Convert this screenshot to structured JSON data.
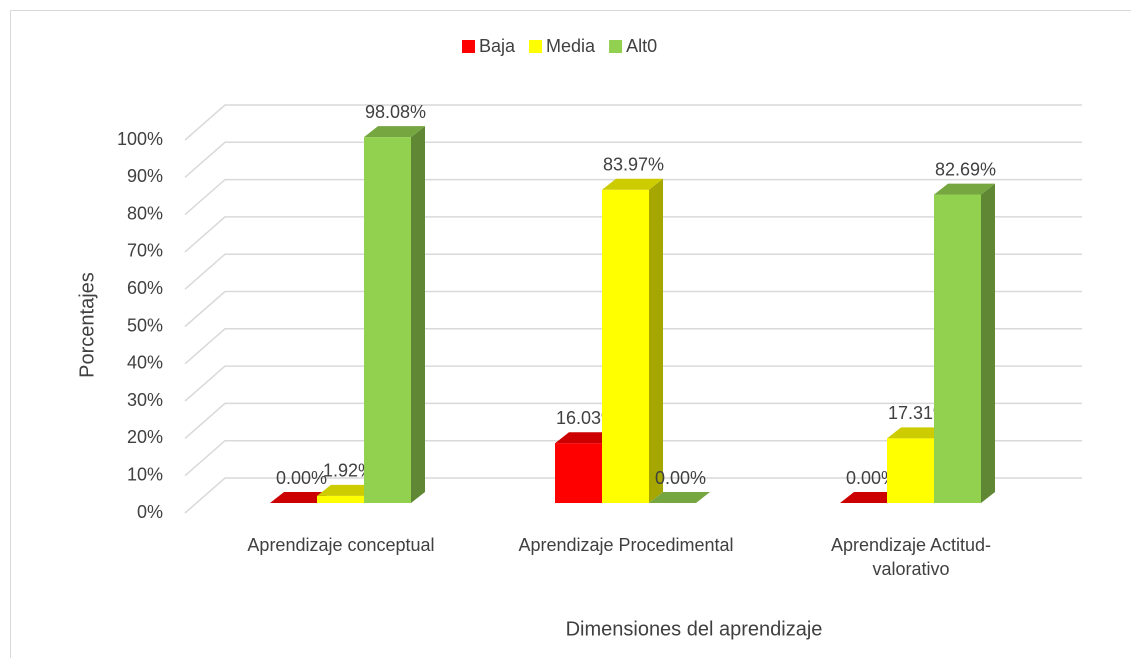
{
  "chart_data": {
    "type": "bar3d",
    "x_label": "Dimensiones del aprendizaje",
    "y_label": "Porcentajes",
    "categories": [
      "Aprendizaje conceptual",
      "Aprendizaje Procedimental",
      "Aprendizaje Actitud-valorativo"
    ],
    "series": [
      {
        "name": "Baja",
        "color": "#ff0000",
        "values": [
          0,
          16.03,
          0
        ],
        "value_labels": [
          "0.00%",
          "16.03%",
          "0.00%"
        ]
      },
      {
        "name": "Media",
        "color": "#ffff00",
        "values": [
          1.92,
          83.97,
          17.31
        ],
        "value_labels": [
          "1.92%",
          "83.97%",
          "17.31%"
        ]
      },
      {
        "name": "Alt0",
        "color": "#92d050",
        "values": [
          98.08,
          0,
          82.69
        ],
        "value_labels": [
          "98.08%",
          "0.00%",
          "82.69%"
        ]
      }
    ],
    "ylim": [
      0,
      100
    ],
    "yticks": [
      {
        "value": 0,
        "label": "0%"
      },
      {
        "value": 10,
        "label": "10%"
      },
      {
        "value": 20,
        "label": "20%"
      },
      {
        "value": 30,
        "label": "30%"
      },
      {
        "value": 40,
        "label": "40%"
      },
      {
        "value": 50,
        "label": "50%"
      },
      {
        "value": 60,
        "label": "60%"
      },
      {
        "value": 70,
        "label": "70%"
      },
      {
        "value": 80,
        "label": "80%"
      },
      {
        "value": 90,
        "label": "90%"
      },
      {
        "value": 100,
        "label": "100%"
      }
    ],
    "grid": true,
    "legend": "top"
  }
}
